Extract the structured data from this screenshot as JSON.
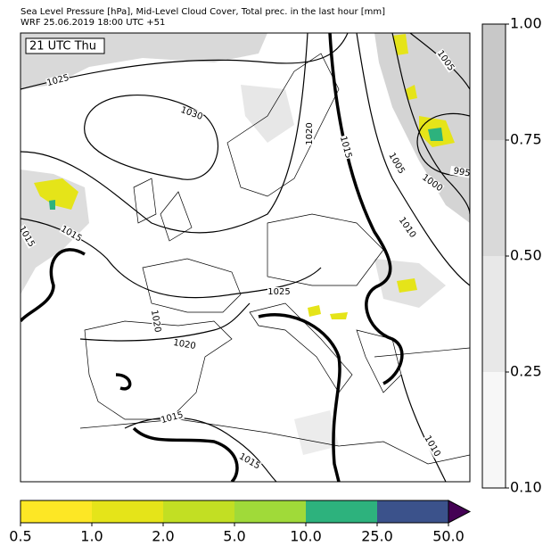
{
  "header": {
    "title": "Sea Level Pressure [hPa], Mid-Level Cloud Cover, Total prec. in the last hour [mm]",
    "subtitle": "WRF 25.06.2019 18:00 UTC +51"
  },
  "map": {
    "time_label": "21 UTC Thu",
    "contour_labels": [
      "1025",
      "1030",
      "1020",
      "1015",
      "1005",
      "1000",
      "995",
      "1005",
      "1010",
      "1015",
      "1015",
      "1025",
      "1020",
      "1015",
      "1015",
      "1010",
      "1020"
    ]
  },
  "cloud_colorbar": {
    "colors": [
      "#f7f7f7",
      "#e8e8e8",
      "#d9d9d9",
      "#c8c8c8"
    ],
    "ticks": [
      {
        "value": 0.1,
        "label": "0.10"
      },
      {
        "value": 0.25,
        "label": "0.25"
      },
      {
        "value": 0.5,
        "label": "0.50"
      },
      {
        "value": 0.75,
        "label": "0.75"
      },
      {
        "value": 1,
        "label": "1.00"
      }
    ]
  },
  "precip_colorbar": {
    "colors": [
      "#fde725",
      "#e5e419",
      "#c2df23",
      "#a0da39",
      "#2db27d",
      "#3b528b",
      "#440154"
    ],
    "ticks": [
      {
        "value": 0.5,
        "label": "0.5"
      },
      {
        "value": 1,
        "label": "1.0"
      },
      {
        "value": 2,
        "label": "2.0"
      },
      {
        "value": 5,
        "label": "5.0"
      },
      {
        "value": 10,
        "label": "10.0"
      },
      {
        "value": 25,
        "label": "25.0"
      },
      {
        "value": 50,
        "label": "50.0"
      }
    ]
  }
}
